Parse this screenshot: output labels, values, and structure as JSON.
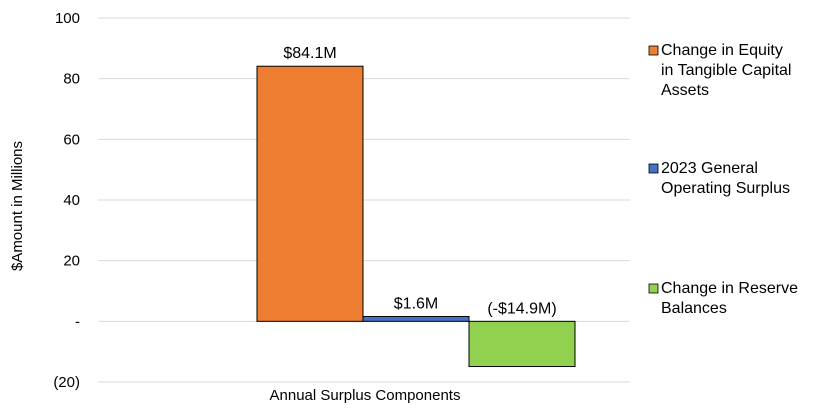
{
  "chart_data": {
    "type": "bar",
    "categories": [
      "Annual Surplus Components"
    ],
    "xlabel": "Annual Surplus Components",
    "ylabel": "$Amount in Millions",
    "ylim": [
      -20,
      100
    ],
    "yticks": [
      {
        "value": 100,
        "label": "100"
      },
      {
        "value": 80,
        "label": "80"
      },
      {
        "value": 60,
        "label": "60"
      },
      {
        "value": 40,
        "label": "40"
      },
      {
        "value": 20,
        "label": "20"
      },
      {
        "value": 0,
        "label": "-"
      },
      {
        "value": -20,
        "label": "(20)"
      }
    ],
    "grid": true,
    "legend_position": "right",
    "series": [
      {
        "name": "Change in Equity in Tangible Capital Assets",
        "legend_lines": [
          "Change in Equity",
          "in Tangible Capital",
          "Assets"
        ],
        "values": [
          84.1
        ],
        "label": "$84.1M",
        "color": "#ED7D31"
      },
      {
        "name": "2023 General Operating Surplus",
        "legend_lines": [
          "2023 General",
          "Operating Surplus"
        ],
        "values": [
          1.6
        ],
        "label": "$1.6M",
        "color": "#4472C4"
      },
      {
        "name": "Change in Reserve Balances",
        "legend_lines": [
          "Change in Reserve",
          "Balances"
        ],
        "values": [
          -14.9
        ],
        "label": "(-$14.9M)",
        "color": "#92D050"
      }
    ]
  }
}
